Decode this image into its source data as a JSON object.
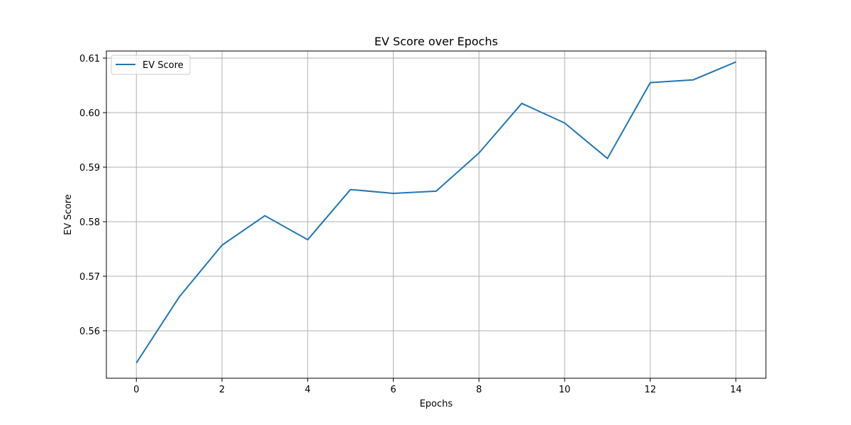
{
  "chart_data": {
    "type": "line",
    "title": "EV Score over Epochs",
    "xlabel": "Epochs",
    "ylabel": "EV Score",
    "x": [
      0,
      1,
      2,
      3,
      4,
      5,
      6,
      7,
      8,
      9,
      10,
      11,
      12,
      13,
      14
    ],
    "series": [
      {
        "name": "EV Score",
        "color": "#1f77b4",
        "values": [
          0.5541,
          0.5662,
          0.5757,
          0.5811,
          0.5767,
          0.5859,
          0.5852,
          0.5856,
          0.5926,
          0.6017,
          0.5981,
          0.5916,
          0.6055,
          0.606,
          0.6093
        ]
      }
    ],
    "xlim": [
      -0.7,
      14.7
    ],
    "ylim": [
      0.5513,
      0.6113
    ],
    "xticks": [
      0,
      2,
      4,
      6,
      8,
      10,
      12,
      14
    ],
    "xtick_labels": [
      "0",
      "2",
      "4",
      "6",
      "8",
      "10",
      "12",
      "14"
    ],
    "yticks": [
      0.56,
      0.57,
      0.58,
      0.59,
      0.6,
      0.61
    ],
    "ytick_labels": [
      "0.56",
      "0.57",
      "0.58",
      "0.59",
      "0.60",
      "0.61"
    ],
    "grid": true,
    "legend_position": "top-left"
  }
}
